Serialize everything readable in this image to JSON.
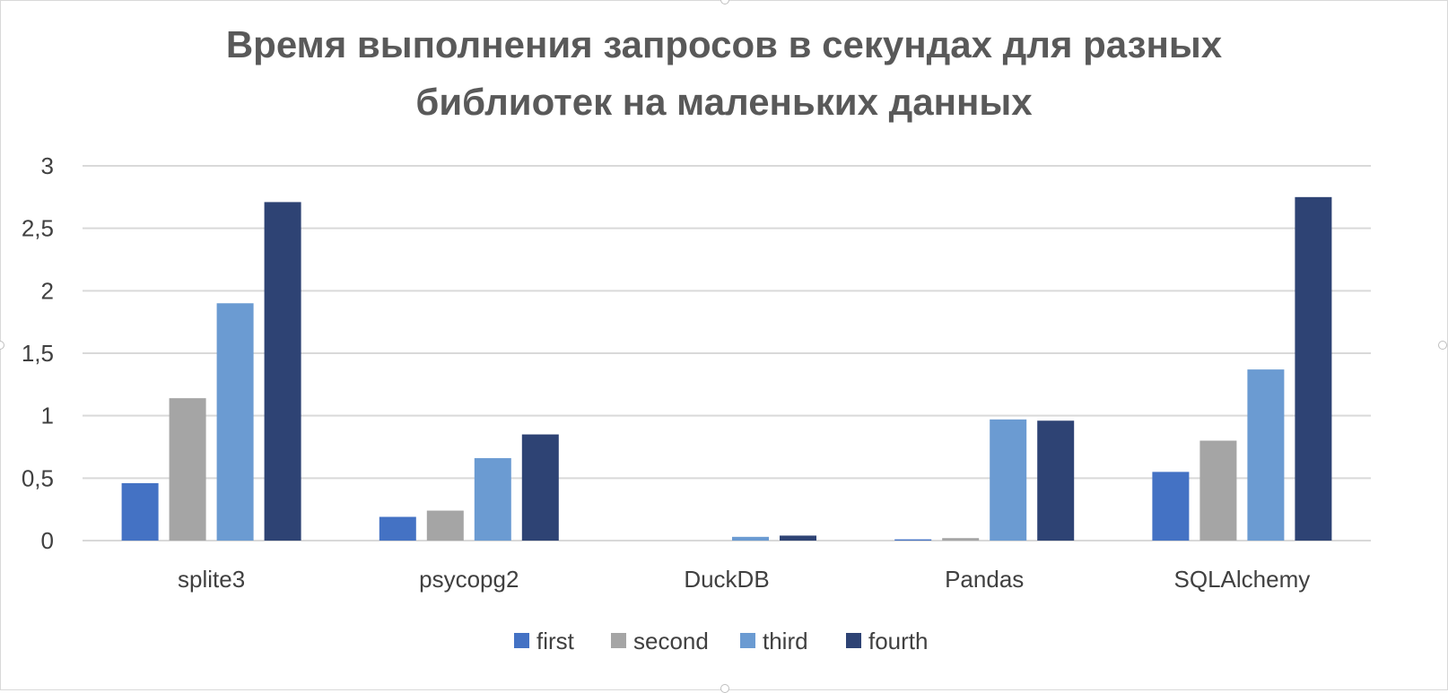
{
  "chart_data": {
    "type": "bar",
    "title_lines": [
      "Время выполнения запросов в секундах для разных",
      "библиотек на маленьких данных"
    ],
    "categories": [
      "splite3",
      "psycopg2",
      "DuckDB",
      "Pandas",
      "SQLAlchemy"
    ],
    "series": [
      {
        "name": "first",
        "color": "#4472C4",
        "values": [
          0.46,
          0.19,
          0.0,
          0.01,
          0.55
        ]
      },
      {
        "name": "second",
        "color": "#A5A5A5",
        "values": [
          1.14,
          0.24,
          0.0,
          0.02,
          0.8
        ]
      },
      {
        "name": "third",
        "color": "#6B9BD2",
        "values": [
          1.9,
          0.66,
          0.03,
          0.97,
          1.37
        ]
      },
      {
        "name": "fourth",
        "color": "#2E4374",
        "values": [
          2.71,
          0.85,
          0.04,
          0.96,
          2.75
        ]
      }
    ],
    "ylim": [
      0,
      3
    ],
    "yticks": [
      0,
      0.5,
      1,
      1.5,
      2,
      2.5,
      3
    ],
    "ytick_labels": [
      "0",
      "0,5",
      "1",
      "1,5",
      "2",
      "2,5",
      "3"
    ],
    "grid": true,
    "legend_position": "bottom",
    "xlabel": "",
    "ylabel": ""
  }
}
